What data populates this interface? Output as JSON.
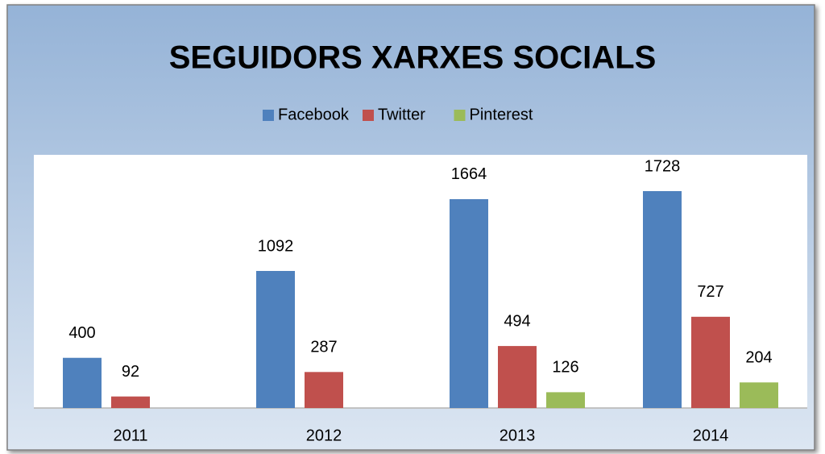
{
  "chart_data": {
    "type": "bar",
    "title": "SEGUIDORS XARXES SOCIALS",
    "categories": [
      "2011",
      "2012",
      "2013",
      "2014"
    ],
    "series": [
      {
        "name": "Facebook",
        "color": "#4f81bd",
        "values": [
          400,
          1092,
          1664,
          1728
        ]
      },
      {
        "name": "Twitter",
        "color": "#c0504d",
        "values": [
          92,
          287,
          494,
          727
        ]
      },
      {
        "name": "Pinterest",
        "color": "#9bbb59",
        "values": [
          null,
          null,
          126,
          204
        ]
      }
    ],
    "legend": "top"
  }
}
